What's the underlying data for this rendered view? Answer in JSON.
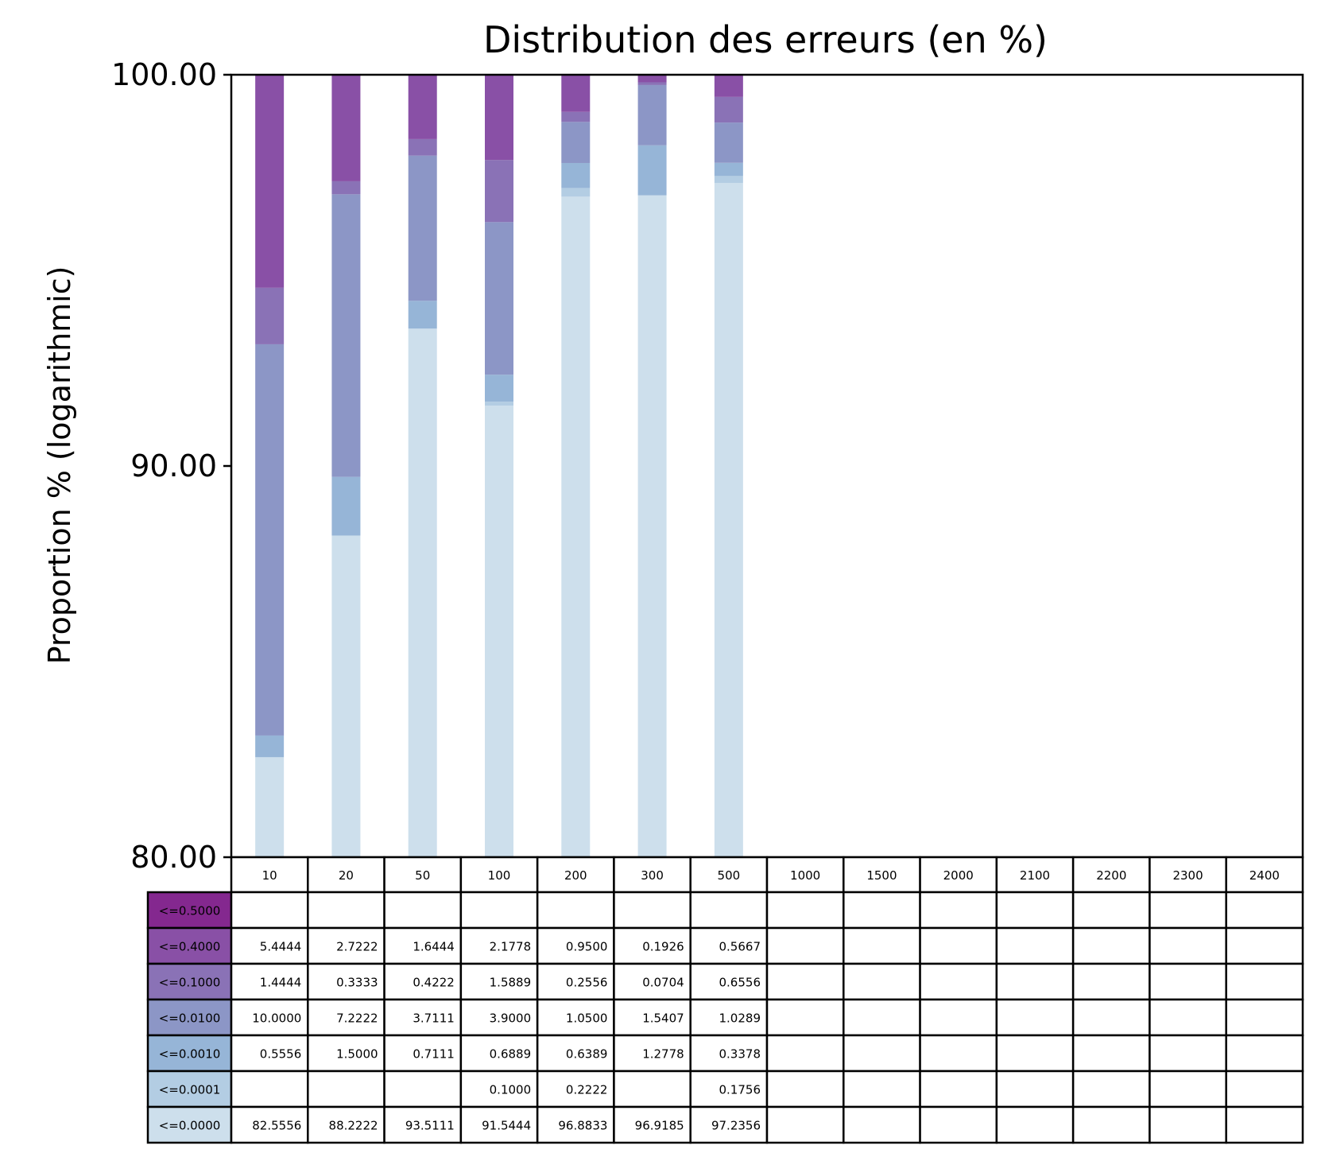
{
  "chart_data": {
    "type": "bar",
    "stacked": true,
    "title": "Distribution des erreurs (en %)",
    "xlabel": "",
    "ylabel": "Proportion % (logarithmic)",
    "ylim": [
      80,
      100
    ],
    "yticks": [
      "80.00",
      "90.00",
      "100.00"
    ],
    "grid": false,
    "categories": [
      "10",
      "20",
      "50",
      "100",
      "200",
      "300",
      "500",
      "1000",
      "1500",
      "2000",
      "2100",
      "2200",
      "2300",
      "2400"
    ],
    "series": [
      {
        "name": "<=0.0000",
        "color": "#cddfec",
        "values": [
          "82.5556",
          "88.2222",
          "93.5111",
          "91.5444",
          "96.8833",
          "96.9185",
          "97.2356",
          "",
          "",
          "",
          "",
          "",
          "",
          ""
        ]
      },
      {
        "name": "<=0.0001",
        "color": "#b3cde3",
        "values": [
          "",
          "",
          "",
          "0.1000",
          "0.2222",
          "",
          "0.1756",
          "",
          "",
          "",
          "",
          "",
          "",
          ""
        ]
      },
      {
        "name": "<=0.0010",
        "color": "#96b5d7",
        "values": [
          "0.5556",
          "1.5000",
          "0.7111",
          "0.6889",
          "0.6389",
          "1.2778",
          "0.3378",
          "",
          "",
          "",
          "",
          "",
          "",
          ""
        ]
      },
      {
        "name": "<=0.0100",
        "color": "#8c96c6",
        "values": [
          "10.0000",
          "7.2222",
          "3.7111",
          "3.9000",
          "1.0500",
          "1.5407",
          "1.0289",
          "",
          "",
          "",
          "",
          "",
          "",
          ""
        ]
      },
      {
        "name": "<=0.1000",
        "color": "#8a72b6",
        "values": [
          "1.4444",
          "0.3333",
          "0.4222",
          "1.5889",
          "0.2556",
          "0.0704",
          "0.6556",
          "",
          "",
          "",
          "",
          "",
          "",
          ""
        ]
      },
      {
        "name": "<=0.4000",
        "color": "#8950a6",
        "values": [
          "5.4444",
          "2.7222",
          "1.6444",
          "2.1778",
          "0.9500",
          "0.1926",
          "0.5667",
          "",
          "",
          "",
          "",
          "",
          "",
          ""
        ]
      },
      {
        "name": "<=0.5000",
        "color": "#84288f",
        "values": [
          "",
          "",
          "",
          "",
          "",
          "",
          "",
          "",
          "",
          "",
          "",
          "",
          "",
          ""
        ]
      }
    ],
    "table_row_order": [
      "<=0.5000",
      "<=0.4000",
      "<=0.1000",
      "<=0.0100",
      "<=0.0010",
      "<=0.0001",
      "<=0.0000"
    ]
  }
}
